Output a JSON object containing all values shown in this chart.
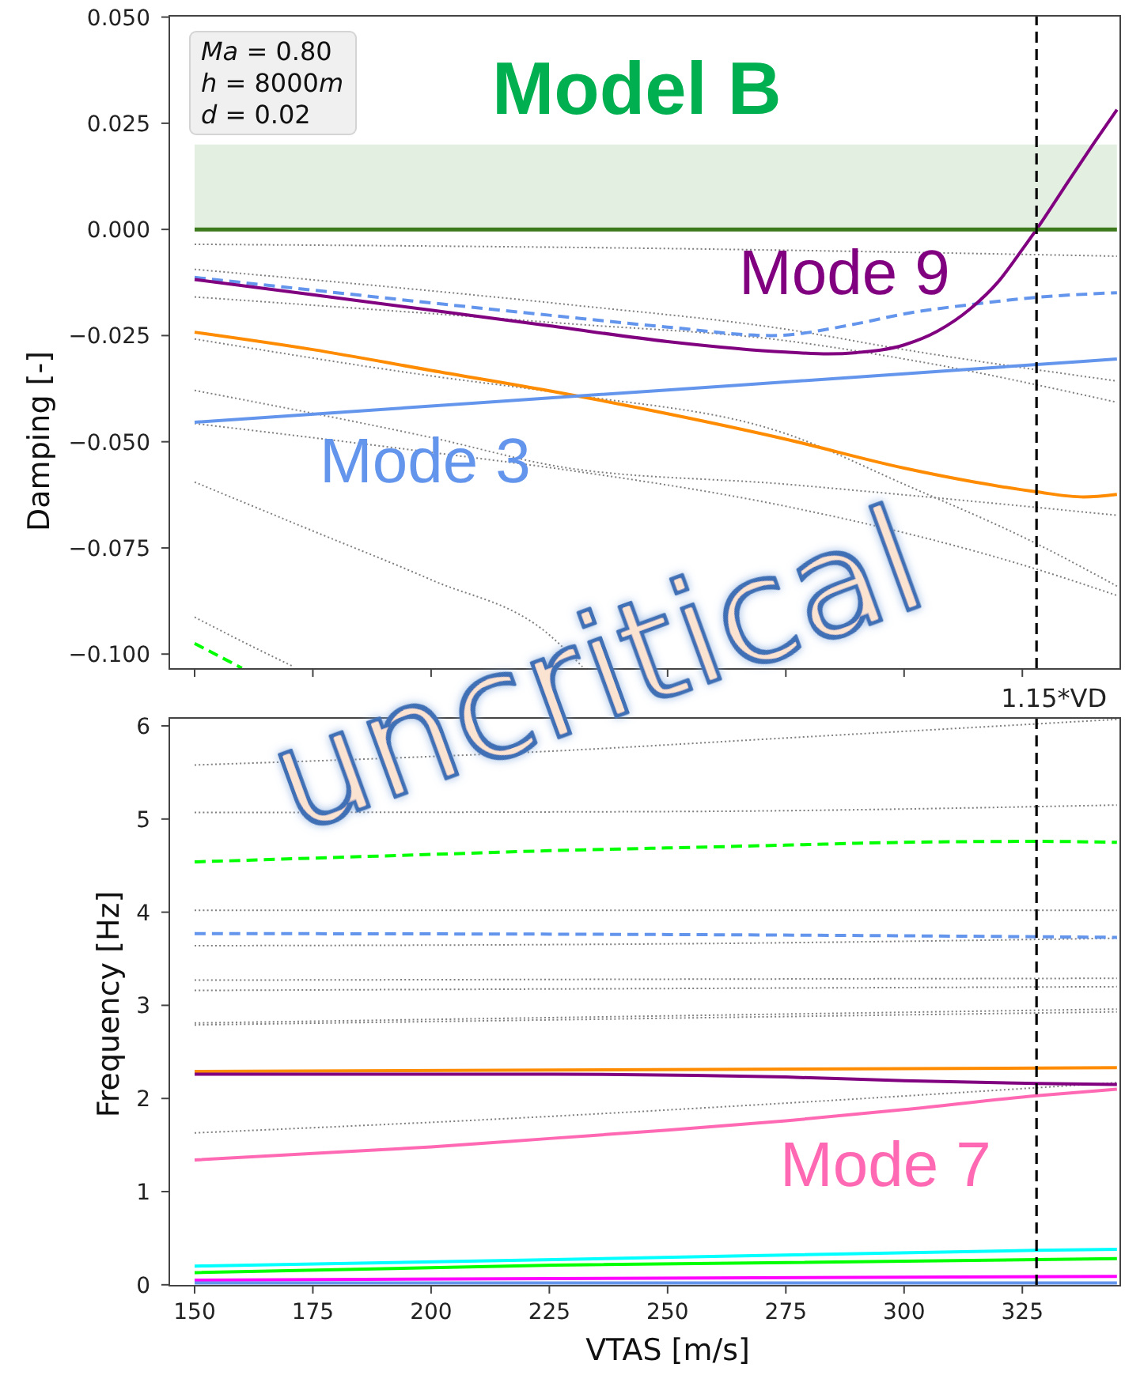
{
  "chart_data": [
    {
      "type": "line",
      "title": "Model B",
      "ylabel": "Damping [-]",
      "annotations": [
        "Ma = 0.80",
        "h = 8000m",
        "d = 0.02",
        "uncritical"
      ],
      "xlim": [
        144.65,
        345.7
      ],
      "xticks": [
        150,
        175,
        200,
        225,
        250,
        275,
        300,
        325
      ],
      "ylim": [
        -0.1035,
        0.0503
      ],
      "yticks": [
        {
          "value": 0.05,
          "label": "0.050"
        },
        {
          "value": 0.025,
          "label": "0.025"
        },
        {
          "value": 0,
          "label": "0.000"
        },
        {
          "value": -0.025,
          "label": "−0.025"
        },
        {
          "value": -0.05,
          "label": "−0.050"
        },
        {
          "value": -0.075,
          "label": "−0.075"
        },
        {
          "value": -0.1,
          "label": "−0.100"
        }
      ],
      "tick_labels": "y",
      "bands": [
        {
          "axis": "y",
          "from": 0,
          "to": 0.02,
          "color": "#e3efe1"
        }
      ],
      "ref_lines": [
        {
          "axis": "y",
          "value": 0,
          "color": "#3d7a1e"
        },
        {
          "axis": "x",
          "value": 328,
          "color": "#000000",
          "line_style": "dashed"
        }
      ],
      "series": [
        {
          "color": "#808080",
          "line_style": "dotted",
          "x": [
            150,
            250,
            345
          ],
          "values": [
            -0.0035,
            -0.0045,
            -0.0063
          ]
        },
        {
          "color": "#808080",
          "line_style": "dotted",
          "x": [
            150,
            229,
            275,
            300,
            345
          ],
          "values": [
            -0.0094,
            -0.0177,
            -0.0235,
            -0.0283,
            -0.0357
          ]
        },
        {
          "color": "#808080",
          "line_style": "dotted",
          "x": [
            150,
            229,
            275,
            300,
            345
          ],
          "values": [
            -0.0159,
            -0.0222,
            -0.0262,
            -0.0305,
            -0.0407
          ]
        },
        {
          "color": "#808080",
          "line_style": "dotted",
          "x": [
            150,
            200,
            229,
            275,
            300,
            328,
            345
          ],
          "values": [
            -0.0258,
            -0.0345,
            -0.0388,
            -0.0481,
            -0.06,
            -0.074,
            -0.084
          ]
        },
        {
          "color": "#808080",
          "line_style": "dotted",
          "x": [
            150,
            200,
            229,
            275,
            300,
            345
          ],
          "values": [
            -0.0379,
            -0.049,
            -0.0562,
            -0.06,
            -0.0625,
            -0.0673
          ]
        },
        {
          "color": "#808080",
          "line_style": "dotted",
          "x": [
            150,
            200,
            229,
            275,
            328,
            345
          ],
          "values": [
            -0.0457,
            -0.0525,
            -0.0567,
            -0.0652,
            -0.08,
            -0.0862
          ]
        },
        {
          "color": "#808080",
          "line_style": "dotted",
          "x": [
            150,
            175,
            200,
            225,
            232
          ],
          "values": [
            -0.0595,
            -0.071,
            -0.0825,
            -0.0955,
            -0.103
          ]
        },
        {
          "color": "#808080",
          "line_style": "dotted",
          "x": [
            150,
            160,
            171
          ],
          "values": [
            -0.0913,
            -0.097,
            -0.103
          ]
        },
        {
          "color": "#00ff00",
          "line_style": "dashed",
          "x": [
            150,
            155,
            160
          ],
          "values": [
            -0.0975,
            -0.1004,
            -0.1033
          ]
        },
        {
          "color": "#ff8c00",
          "line_style": "solid",
          "x": [
            150,
            175,
            200,
            225,
            250,
            275,
            300,
            315,
            328,
            338,
            345
          ],
          "values": [
            -0.0242,
            -0.0283,
            -0.0332,
            -0.038,
            -0.0434,
            -0.0494,
            -0.0562,
            -0.0595,
            -0.0618,
            -0.063,
            -0.0624
          ]
        },
        {
          "name": "Mode 3",
          "color": "#6495ed",
          "line_style": "solid",
          "x": [
            150,
            200,
            250,
            300,
            345
          ],
          "values": [
            -0.0454,
            -0.0416,
            -0.0378,
            -0.034,
            -0.0305
          ]
        },
        {
          "color": "#6495ed",
          "line_style": "dashed",
          "x": [
            150,
            175,
            200,
            225,
            250,
            272,
            290,
            300,
            314,
            328,
            345
          ],
          "values": [
            -0.0113,
            -0.0143,
            -0.0173,
            -0.0202,
            -0.023,
            -0.025,
            -0.0222,
            -0.0199,
            -0.0177,
            -0.016,
            -0.0149
          ]
        },
        {
          "name": "Mode 9",
          "color": "#800080",
          "line_style": "solid",
          "x": [
            150,
            175,
            200,
            225,
            250,
            275,
            284,
            290,
            300,
            307,
            314,
            320,
            325,
            328,
            335,
            340,
            345
          ],
          "values": [
            -0.0118,
            -0.0154,
            -0.019,
            -0.0227,
            -0.0264,
            -0.0289,
            -0.0293,
            -0.029,
            -0.0272,
            -0.024,
            -0.0187,
            -0.0122,
            -0.0047,
            0.0,
            0.0118,
            0.0201,
            0.0282
          ]
        }
      ]
    },
    {
      "type": "line",
      "xlabel": "VTAS [m/s]",
      "ylabel": "Frequency [Hz]",
      "xlim": [
        144.65,
        345.7
      ],
      "xticks": [
        150,
        175,
        200,
        225,
        250,
        275,
        300,
        325
      ],
      "ylim": [
        -0.01,
        6.085
      ],
      "yticks": [
        0,
        1,
        2,
        3,
        4,
        5,
        6
      ],
      "ref_lines": [
        {
          "axis": "x",
          "value": 328,
          "label": "1.15*VD",
          "color": "#000000",
          "line_style": "dashed"
        }
      ],
      "series": [
        {
          "color": "#808080",
          "line_style": "dotted",
          "x": [
            150,
            226,
            275,
            345
          ],
          "values": [
            5.58,
            5.73,
            5.87,
            6.07
          ]
        },
        {
          "color": "#808080",
          "line_style": "dotted",
          "x": [
            150,
            250,
            345
          ],
          "values": [
            5.07,
            5.08,
            5.15
          ]
        },
        {
          "color": "#808080",
          "line_style": "dotted",
          "x": [
            150,
            345
          ],
          "values": [
            4.02,
            4.02
          ]
        },
        {
          "color": "#808080",
          "line_style": "dotted",
          "x": [
            150,
            250,
            345
          ],
          "values": [
            3.64,
            3.66,
            3.72
          ]
        },
        {
          "color": "#808080",
          "line_style": "dotted",
          "x": [
            150,
            345
          ],
          "values": [
            3.27,
            3.29
          ]
        },
        {
          "color": "#808080",
          "line_style": "dotted",
          "x": [
            150,
            345
          ],
          "values": [
            3.16,
            3.2
          ]
        },
        {
          "color": "#808080",
          "line_style": "dotted",
          "x": [
            150,
            345
          ],
          "values": [
            2.81,
            2.96
          ]
        },
        {
          "color": "#808080",
          "line_style": "dotted",
          "x": [
            150,
            345
          ],
          "values": [
            2.79,
            2.93
          ]
        },
        {
          "color": "#808080",
          "line_style": "dotted",
          "x": [
            150,
            226,
            275,
            345
          ],
          "values": [
            1.63,
            1.81,
            1.95,
            2.17
          ]
        },
        {
          "color": "#00ff00",
          "line_style": "dashed",
          "x": [
            150,
            175,
            200,
            225,
            250,
            275,
            300,
            328,
            345
          ],
          "values": [
            4.54,
            4.58,
            4.62,
            4.66,
            4.69,
            4.72,
            4.75,
            4.76,
            4.75
          ]
        },
        {
          "color": "#6495ed",
          "line_style": "dashed",
          "x": [
            150,
            250,
            345
          ],
          "values": [
            3.77,
            3.76,
            3.73
          ]
        },
        {
          "color": "#ff8c00",
          "line_style": "solid",
          "x": [
            150,
            345
          ],
          "values": [
            2.29,
            2.33
          ]
        },
        {
          "color": "#800080",
          "line_style": "solid",
          "x": [
            150,
            226,
            275,
            300,
            328,
            345
          ],
          "values": [
            2.26,
            2.26,
            2.23,
            2.19,
            2.16,
            2.15
          ]
        },
        {
          "name": "Mode 7",
          "color": "#ff69b4",
          "line_style": "solid",
          "x": [
            150,
            175,
            200,
            225,
            250,
            275,
            300,
            328,
            345
          ],
          "values": [
            1.34,
            1.41,
            1.48,
            1.57,
            1.66,
            1.76,
            1.88,
            2.03,
            2.1
          ]
        },
        {
          "color": "#00ffff",
          "line_style": "solid",
          "x": [
            150,
            226,
            328,
            345
          ],
          "values": [
            0.2,
            0.27,
            0.37,
            0.38
          ]
        },
        {
          "color": "#00ff00",
          "line_style": "solid",
          "x": [
            150,
            226,
            345
          ],
          "values": [
            0.13,
            0.21,
            0.28
          ]
        },
        {
          "color": "#ff00ff",
          "line_style": "solid",
          "x": [
            150,
            345
          ],
          "values": [
            0.05,
            0.09
          ]
        },
        {
          "color": "#6495ed",
          "line_style": "solid",
          "x": [
            150,
            345
          ],
          "values": [
            0.02,
            0.02
          ]
        }
      ]
    }
  ]
}
